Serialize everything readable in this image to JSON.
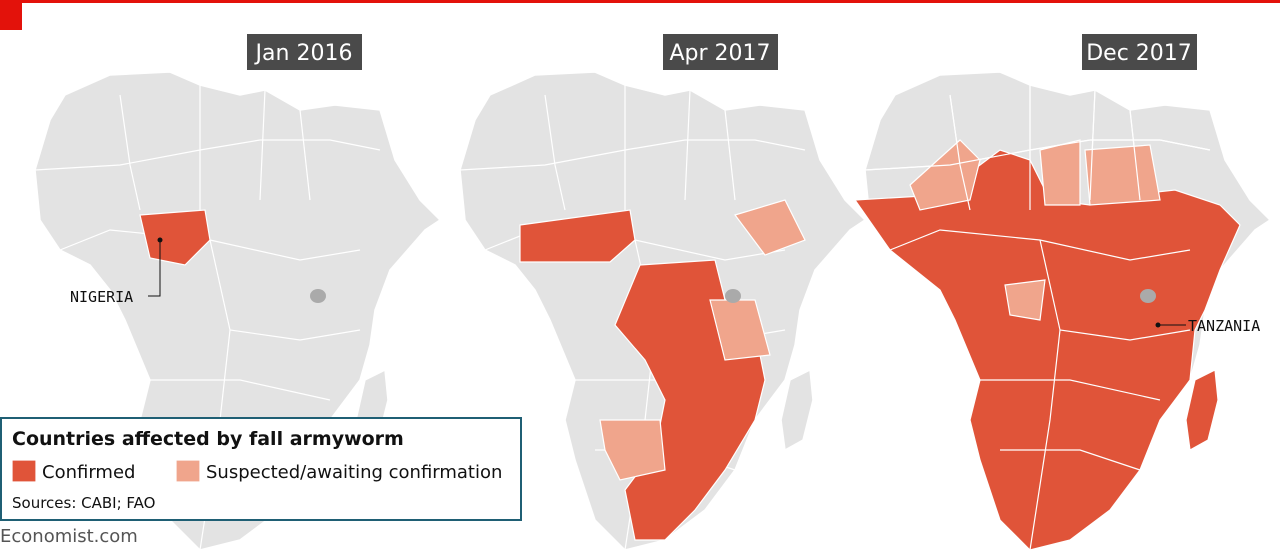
{
  "panels": [
    {
      "title": "Jan 2016"
    },
    {
      "title": "Apr 2017"
    },
    {
      "title": "Dec 2017"
    }
  ],
  "annotations": {
    "nigeria": "NIGERIA",
    "tanzania": "TANZANIA"
  },
  "legend": {
    "title": "Countries affected by fall armyworm",
    "items": [
      "Confirmed",
      "Suspected/awaiting confirmation"
    ],
    "source": "Sources: CABI; FAO"
  },
  "footer": "Economist.com"
}
